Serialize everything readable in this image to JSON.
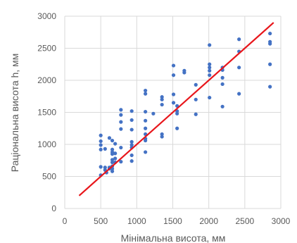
{
  "chart_data": {
    "type": "scatter",
    "title": "",
    "xlabel": "Мінімальна висота, мм",
    "ylabel": "Раціональна висота h, мм",
    "xlim": [
      0,
      3000
    ],
    "ylim": [
      0,
      3000
    ],
    "xticks": [
      0,
      500,
      1000,
      1500,
      2000,
      2500,
      3000
    ],
    "yticks": [
      0,
      500,
      1000,
      1500,
      2000,
      2500,
      3000
    ],
    "xtick_labels": [
      "0",
      "500",
      "1000",
      "1500",
      "2000",
      "2500",
      "3000"
    ],
    "ytick_labels": [
      "0",
      "500",
      "1000",
      "1500",
      "2000",
      "2500",
      "3000"
    ],
    "grid": true,
    "series": [
      {
        "kind": "points",
        "color": "#4472C4",
        "points": [
          [
            500,
            1140
          ],
          [
            500,
            1050
          ],
          [
            500,
            990
          ],
          [
            500,
            920
          ],
          [
            500,
            650
          ],
          [
            500,
            520
          ],
          [
            560,
            930
          ],
          [
            560,
            640
          ],
          [
            560,
            600
          ],
          [
            580,
            560
          ],
          [
            620,
            1100
          ],
          [
            620,
            640
          ],
          [
            620,
            620
          ],
          [
            660,
            1060
          ],
          [
            660,
            920
          ],
          [
            660,
            880
          ],
          [
            660,
            850
          ],
          [
            660,
            760
          ],
          [
            660,
            720
          ],
          [
            660,
            660
          ],
          [
            660,
            620
          ],
          [
            660,
            580
          ],
          [
            700,
            1010
          ],
          [
            700,
            860
          ],
          [
            700,
            780
          ],
          [
            700,
            720
          ],
          [
            780,
            1540
          ],
          [
            780,
            1460
          ],
          [
            780,
            1350
          ],
          [
            780,
            1240
          ],
          [
            780,
            950
          ],
          [
            780,
            730
          ],
          [
            930,
            1520
          ],
          [
            930,
            1380
          ],
          [
            930,
            1230
          ],
          [
            930,
            1040
          ],
          [
            930,
            990
          ],
          [
            930,
            950
          ],
          [
            930,
            830
          ],
          [
            930,
            740
          ],
          [
            1120,
            1840
          ],
          [
            1120,
            1790
          ],
          [
            1120,
            1510
          ],
          [
            1120,
            1370
          ],
          [
            1120,
            1250
          ],
          [
            1120,
            1160
          ],
          [
            1120,
            1090
          ],
          [
            1120,
            1060
          ],
          [
            1120,
            880
          ],
          [
            1230,
            1480
          ],
          [
            1350,
            1740
          ],
          [
            1350,
            1700
          ],
          [
            1350,
            1620
          ],
          [
            1350,
            1160
          ],
          [
            1350,
            1120
          ],
          [
            1510,
            2230
          ],
          [
            1510,
            2080
          ],
          [
            1510,
            1780
          ],
          [
            1510,
            1650
          ],
          [
            1560,
            1600
          ],
          [
            1560,
            1520
          ],
          [
            1560,
            1480
          ],
          [
            1560,
            1250
          ],
          [
            1660,
            2150
          ],
          [
            1660,
            2120
          ],
          [
            1820,
            1930
          ],
          [
            1820,
            1700
          ],
          [
            1820,
            1470
          ],
          [
            2010,
            2550
          ],
          [
            2010,
            2250
          ],
          [
            2010,
            2200
          ],
          [
            2010,
            2150
          ],
          [
            2010,
            2080
          ],
          [
            2010,
            1730
          ],
          [
            2190,
            2200
          ],
          [
            2190,
            2160
          ],
          [
            2190,
            2040
          ],
          [
            2190,
            1940
          ],
          [
            2190,
            1590
          ],
          [
            2420,
            2640
          ],
          [
            2420,
            2450
          ],
          [
            2420,
            2200
          ],
          [
            2420,
            1790
          ],
          [
            2850,
            2730
          ],
          [
            2850,
            2600
          ],
          [
            2850,
            2570
          ],
          [
            2850,
            2250
          ],
          [
            2850,
            1900
          ]
        ]
      },
      {
        "kind": "line",
        "color": "#E8161B",
        "points": [
          [
            200,
            200
          ],
          [
            2900,
            2900
          ]
        ]
      }
    ]
  }
}
